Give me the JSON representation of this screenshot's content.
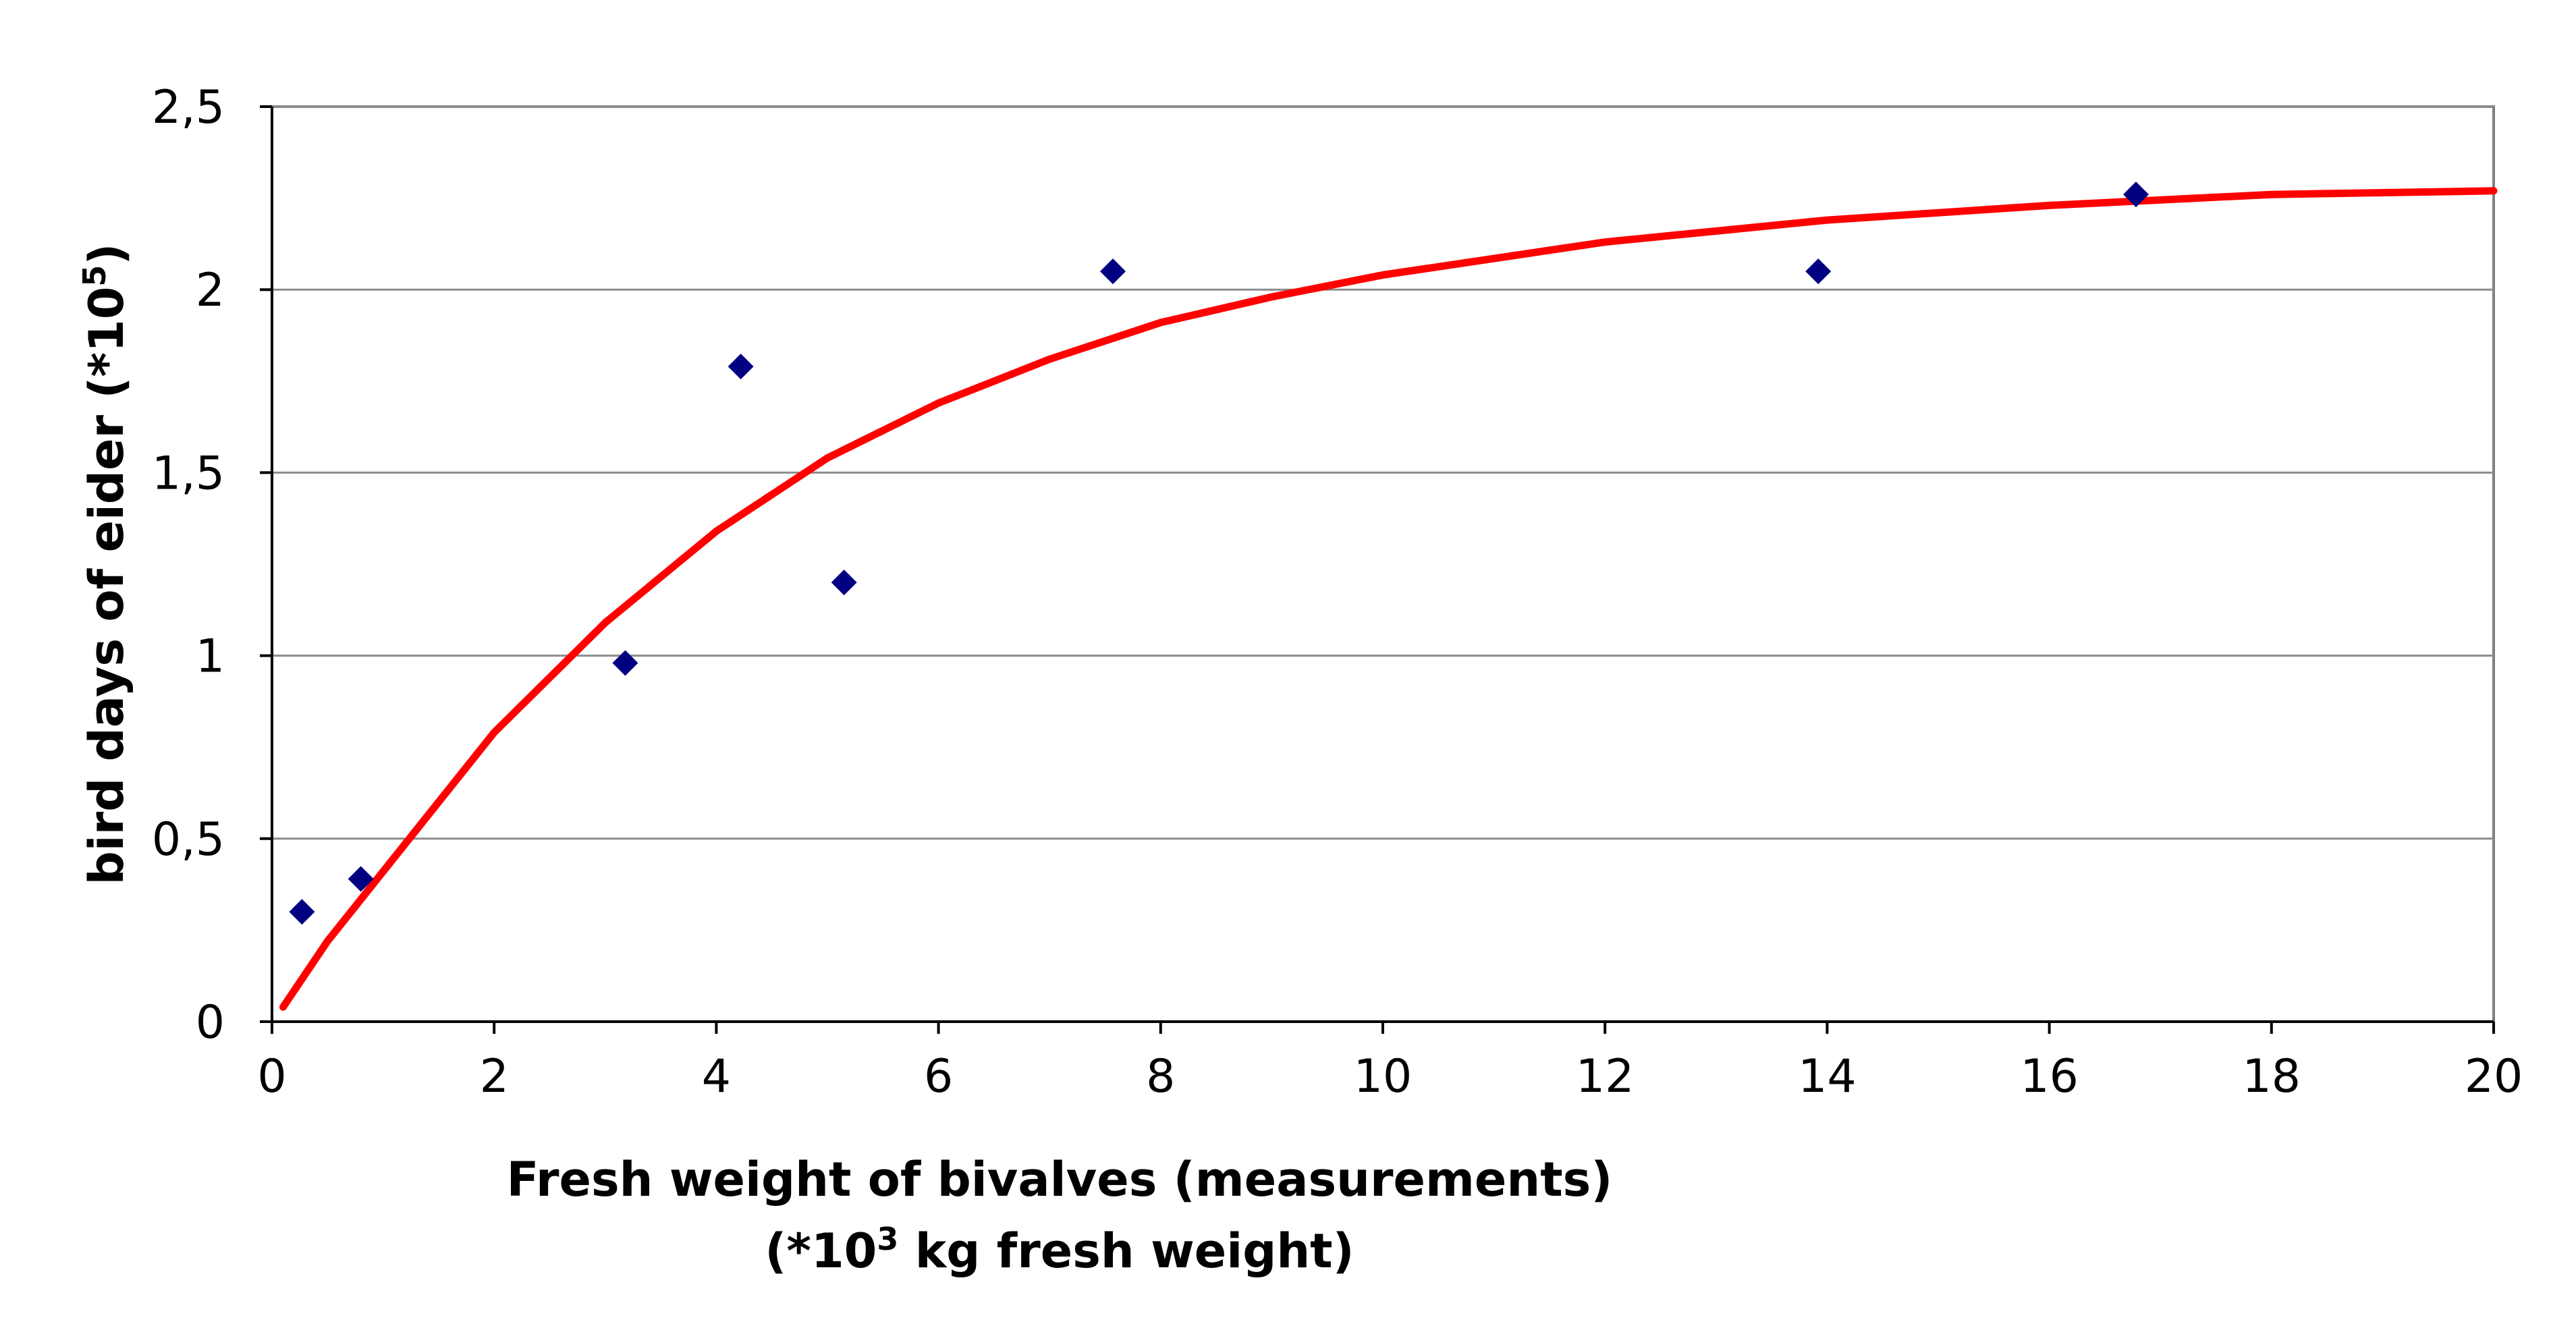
{
  "chart_data": {
    "type": "scatter",
    "title": "",
    "xlabel": "Fresh weight of bivalves (measurements)",
    "xlabel_line2": {
      "prefix": "(*10",
      "superscript": "3",
      "suffix": " kg fresh weight)"
    },
    "ylabel": {
      "prefix": "bird days of eider (*10",
      "superscript": "5",
      "suffix": ")"
    },
    "xlim": [
      0,
      20
    ],
    "ylim": [
      0,
      2.5
    ],
    "x_ticks": [
      0,
      2,
      4,
      6,
      8,
      10,
      12,
      14,
      16,
      18,
      20
    ],
    "y_ticks": [
      0,
      0.5,
      1,
      1.5,
      2,
      2.5
    ],
    "x_tick_labels": [
      "0",
      "2",
      "4",
      "6",
      "8",
      "10",
      "12",
      "14",
      "16",
      "18",
      "20"
    ],
    "y_tick_labels": [
      "0",
      "0,5",
      "1",
      "1,5",
      "2",
      "2,5"
    ],
    "grid": "horizontal",
    "legend": "none",
    "series": [
      {
        "type": "scatter",
        "marker": "diamond",
        "color": "#000080",
        "x": [
          0.27,
          0.8,
          3.18,
          4.22,
          5.15,
          7.57,
          13.92,
          16.78
        ],
        "y": [
          0.3,
          0.39,
          0.98,
          1.79,
          1.2,
          2.05,
          2.05,
          2.26
        ]
      },
      {
        "type": "line",
        "color": "#ff0000",
        "x": [
          0.1,
          0.5,
          1,
          2,
          3,
          4,
          5,
          6,
          7,
          8,
          9,
          10,
          12,
          14,
          16,
          18,
          20
        ],
        "y": [
          0.04,
          0.22,
          0.41,
          0.79,
          1.09,
          1.34,
          1.54,
          1.69,
          1.81,
          1.91,
          1.98,
          2.04,
          2.13,
          2.19,
          2.23,
          2.26,
          2.27
        ]
      }
    ]
  }
}
